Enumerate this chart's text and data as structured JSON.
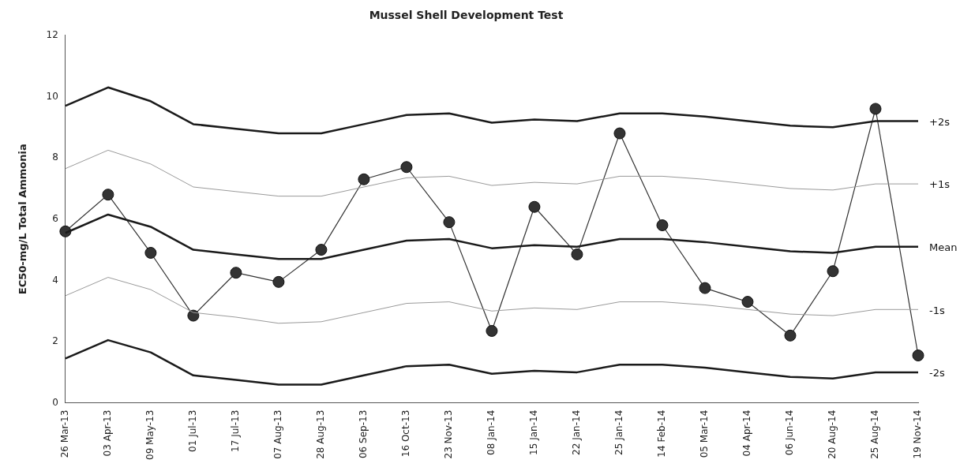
{
  "chart_data": {
    "type": "line",
    "title": "Mussel Shell Development Test",
    "ylabel": "EC50-mg/L Total Ammonia",
    "categories": [
      "26 Mar-13",
      "03 Apr-13",
      "09 May-13",
      "01 Jul-13",
      "17 Jul-13",
      "07 Aug-13",
      "28 Aug-13",
      "06 Sep-13",
      "16 Oct-13",
      "23 Nov-13",
      "08 Jan-14",
      "15 Jan-14",
      "22 Jan-14",
      "25 Jan-14",
      "14 Feb-14",
      "05 Mar-14",
      "04 Apr-14",
      "06 Jun-14",
      "20 Aug-14",
      "25 Aug-14",
      "19 Nov-14"
    ],
    "series": [
      {
        "name": "+2s",
        "color": "#1a1a1a",
        "marker": "none",
        "values": [
          9.7,
          10.3,
          9.85,
          9.1,
          8.95,
          8.8,
          8.8,
          9.1,
          9.4,
          9.45,
          9.15,
          9.25,
          9.2,
          9.45,
          9.45,
          9.35,
          9.2,
          9.05,
          9.0,
          9.2,
          9.2
        ]
      },
      {
        "name": "+1s",
        "color": "#9a9a9a",
        "marker": "none",
        "values": [
          7.65,
          8.25,
          7.8,
          7.05,
          6.9,
          6.75,
          6.75,
          7.05,
          7.35,
          7.4,
          7.1,
          7.2,
          7.15,
          7.4,
          7.4,
          7.3,
          7.15,
          7.0,
          6.95,
          7.15,
          7.15
        ]
      },
      {
        "name": "Mean",
        "color": "#1a1a1a",
        "marker": "none",
        "values": [
          5.55,
          6.15,
          5.75,
          5.0,
          4.85,
          4.7,
          4.7,
          5.0,
          5.3,
          5.35,
          5.05,
          5.15,
          5.1,
          5.35,
          5.35,
          5.25,
          5.1,
          4.95,
          4.9,
          5.1,
          5.1
        ]
      },
      {
        "name": "-1s",
        "color": "#9a9a9a",
        "marker": "none",
        "values": [
          3.5,
          4.1,
          3.7,
          2.95,
          2.8,
          2.6,
          2.65,
          2.95,
          3.25,
          3.3,
          3.0,
          3.1,
          3.05,
          3.3,
          3.3,
          3.2,
          3.05,
          2.9,
          2.85,
          3.05,
          3.05
        ]
      },
      {
        "name": "-2s",
        "color": "#1a1a1a",
        "marker": "none",
        "values": [
          1.45,
          2.05,
          1.65,
          0.9,
          0.75,
          0.6,
          0.6,
          0.9,
          1.2,
          1.25,
          0.95,
          1.05,
          1.0,
          1.25,
          1.25,
          1.15,
          1.0,
          0.85,
          0.8,
          1.0,
          1.0
        ]
      },
      {
        "color": "#333333",
        "marker": "circle",
        "values": [
          5.6,
          6.8,
          4.9,
          2.85,
          4.25,
          3.95,
          5.0,
          7.3,
          7.7,
          5.9,
          2.35,
          6.4,
          4.85,
          8.8,
          5.8,
          3.75,
          3.3,
          2.2,
          4.3,
          9.6,
          1.55
        ]
      }
    ],
    "ylim": [
      0,
      12
    ],
    "yticks": [
      0,
      2,
      4,
      6,
      8,
      10,
      12
    ],
    "grid": false,
    "legend": false
  }
}
